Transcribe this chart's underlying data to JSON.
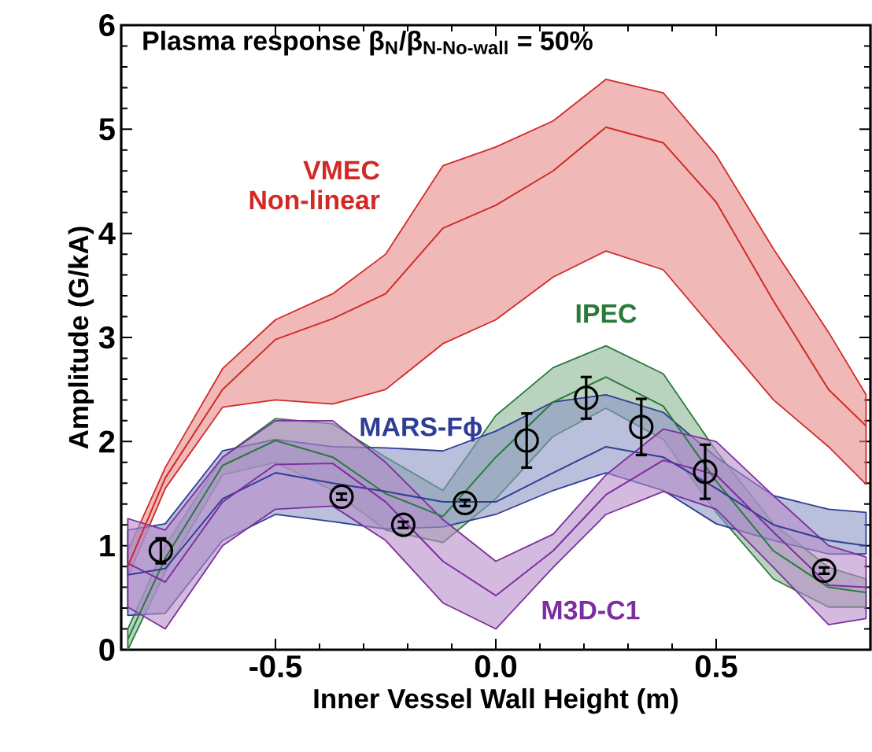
{
  "chart_data": {
    "type": "line",
    "title": "Plasma response β$_{N}$/β$_{N-No-wall}$ = 50%",
    "xlabel": "Inner Vessel Wall Height (m)",
    "ylabel": "Amplitude (G/kA)",
    "xlim": [
      -0.85,
      0.85
    ],
    "ylim": [
      0,
      6
    ],
    "xticks": [
      -0.5,
      {
        "value": 0,
        "label": "0.0"
      },
      0.5
    ],
    "yticks": [
      0,
      1,
      2,
      3,
      4,
      5,
      6
    ],
    "series": [
      {
        "name": "VMEC Non-linear",
        "color": "#d12a26",
        "x": [
          -0.835,
          -0.75,
          -0.62,
          -0.5,
          -0.37,
          -0.25,
          -0.12,
          0.0,
          0.13,
          0.25,
          0.38,
          0.5,
          0.63,
          0.755,
          0.84
        ],
        "values": [
          0.8,
          1.65,
          2.5,
          2.98,
          3.18,
          3.42,
          4.05,
          4.27,
          4.6,
          5.02,
          4.87,
          4.3,
          3.35,
          2.5,
          2.15
        ],
        "lower": [
          0.7,
          1.55,
          2.33,
          2.4,
          2.36,
          2.5,
          2.94,
          3.17,
          3.58,
          3.83,
          3.65,
          3.05,
          2.4,
          1.95,
          1.59
        ],
        "upper": [
          0.95,
          1.75,
          2.7,
          3.17,
          3.42,
          3.8,
          4.65,
          4.83,
          5.08,
          5.48,
          5.35,
          4.75,
          3.85,
          3.05,
          2.45
        ]
      },
      {
        "name": "IPEC",
        "color": "#2a7a3c",
        "x": [
          -0.835,
          -0.75,
          -0.62,
          -0.5,
          -0.37,
          -0.25,
          -0.12,
          0.0,
          0.13,
          0.25,
          0.38,
          0.5,
          0.63,
          0.755,
          0.84
        ],
        "values": [
          0.1,
          0.88,
          1.77,
          2.01,
          1.85,
          1.5,
          1.28,
          1.85,
          2.38,
          2.62,
          2.34,
          1.62,
          0.95,
          0.6,
          0.55
        ],
        "lower": [
          0.0,
          0.75,
          1.68,
          1.8,
          1.53,
          1.15,
          1.03,
          1.45,
          2.05,
          2.32,
          2.02,
          1.32,
          0.68,
          0.41,
          0.41
        ],
        "upper": [
          0.2,
          1.0,
          1.85,
          2.22,
          2.17,
          1.85,
          1.53,
          2.25,
          2.71,
          2.92,
          2.65,
          1.91,
          1.21,
          0.79,
          0.68
        ]
      },
      {
        "name": "MARS-Fϕ",
        "color": "#2e3e96",
        "x": [
          -0.835,
          -0.75,
          -0.62,
          -0.5,
          -0.37,
          -0.25,
          -0.12,
          0.0,
          0.13,
          0.25,
          0.38,
          0.5,
          0.63,
          0.755,
          0.84
        ],
        "values": [
          0.72,
          0.78,
          1.45,
          1.7,
          1.6,
          1.52,
          1.42,
          1.42,
          1.7,
          1.95,
          1.85,
          1.55,
          1.2,
          1.05,
          1.0
        ],
        "lower": [
          0.33,
          0.35,
          1.05,
          1.3,
          1.23,
          1.16,
          1.18,
          1.3,
          1.53,
          1.7,
          1.53,
          1.21,
          1.05,
          0.92,
          0.92
        ],
        "upper": [
          1.15,
          1.21,
          1.91,
          2.02,
          1.95,
          1.94,
          1.91,
          2.1,
          2.38,
          2.45,
          2.28,
          1.85,
          1.48,
          1.35,
          1.32
        ]
      },
      {
        "name": "M3D-C1",
        "color": "#7d2e9e",
        "x": [
          -0.835,
          -0.75,
          -0.62,
          -0.5,
          -0.37,
          -0.25,
          -0.12,
          0.0,
          0.13,
          0.25,
          0.38,
          0.5,
          0.63,
          0.755,
          0.84
        ],
        "values": [
          0.83,
          0.65,
          1.42,
          1.78,
          1.79,
          1.42,
          0.85,
          0.52,
          0.95,
          1.49,
          1.82,
          1.68,
          1.13,
          0.62,
          0.6
        ],
        "lower": [
          0.41,
          0.2,
          1.0,
          1.35,
          1.38,
          1.05,
          0.45,
          0.2,
          0.79,
          1.3,
          1.52,
          1.35,
          0.79,
          0.24,
          0.3
        ],
        "upper": [
          1.26,
          1.15,
          1.85,
          2.2,
          2.2,
          1.8,
          1.25,
          0.85,
          1.11,
          1.68,
          2.12,
          2.0,
          1.48,
          1.0,
          0.89
        ]
      },
      {
        "type": "scatter",
        "color": "#000000",
        "marker": "circle",
        "x": [
          -0.76,
          -0.35,
          -0.21,
          -0.07,
          0.07,
          0.205,
          0.33,
          0.475,
          0.745
        ],
        "values": [
          0.95,
          1.47,
          1.2,
          1.41,
          2.01,
          2.42,
          2.14,
          1.71,
          0.76
        ],
        "errors": [
          0.12,
          0.03,
          0.03,
          0.03,
          0.26,
          0.2,
          0.27,
          0.26,
          0.03
        ]
      }
    ]
  }
}
